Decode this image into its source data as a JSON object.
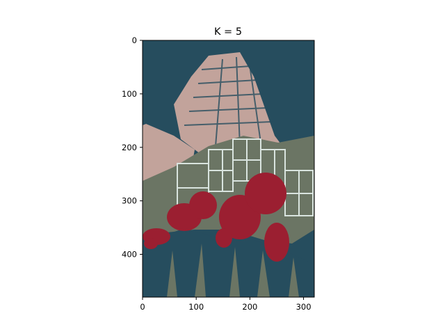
{
  "chart_data": {
    "type": "image",
    "title": "K = 5",
    "xlim": [
      0,
      320
    ],
    "ylim": [
      480,
      0
    ],
    "x_ticks": [
      0,
      100,
      200,
      300
    ],
    "y_ticks": [
      0,
      100,
      200,
      300,
      400
    ],
    "palette": [
      "#264d5e",
      "#6b7564",
      "#c2a39b",
      "#d9e4df",
      "#9b1f31"
    ],
    "legend": "none",
    "grid": false
  }
}
